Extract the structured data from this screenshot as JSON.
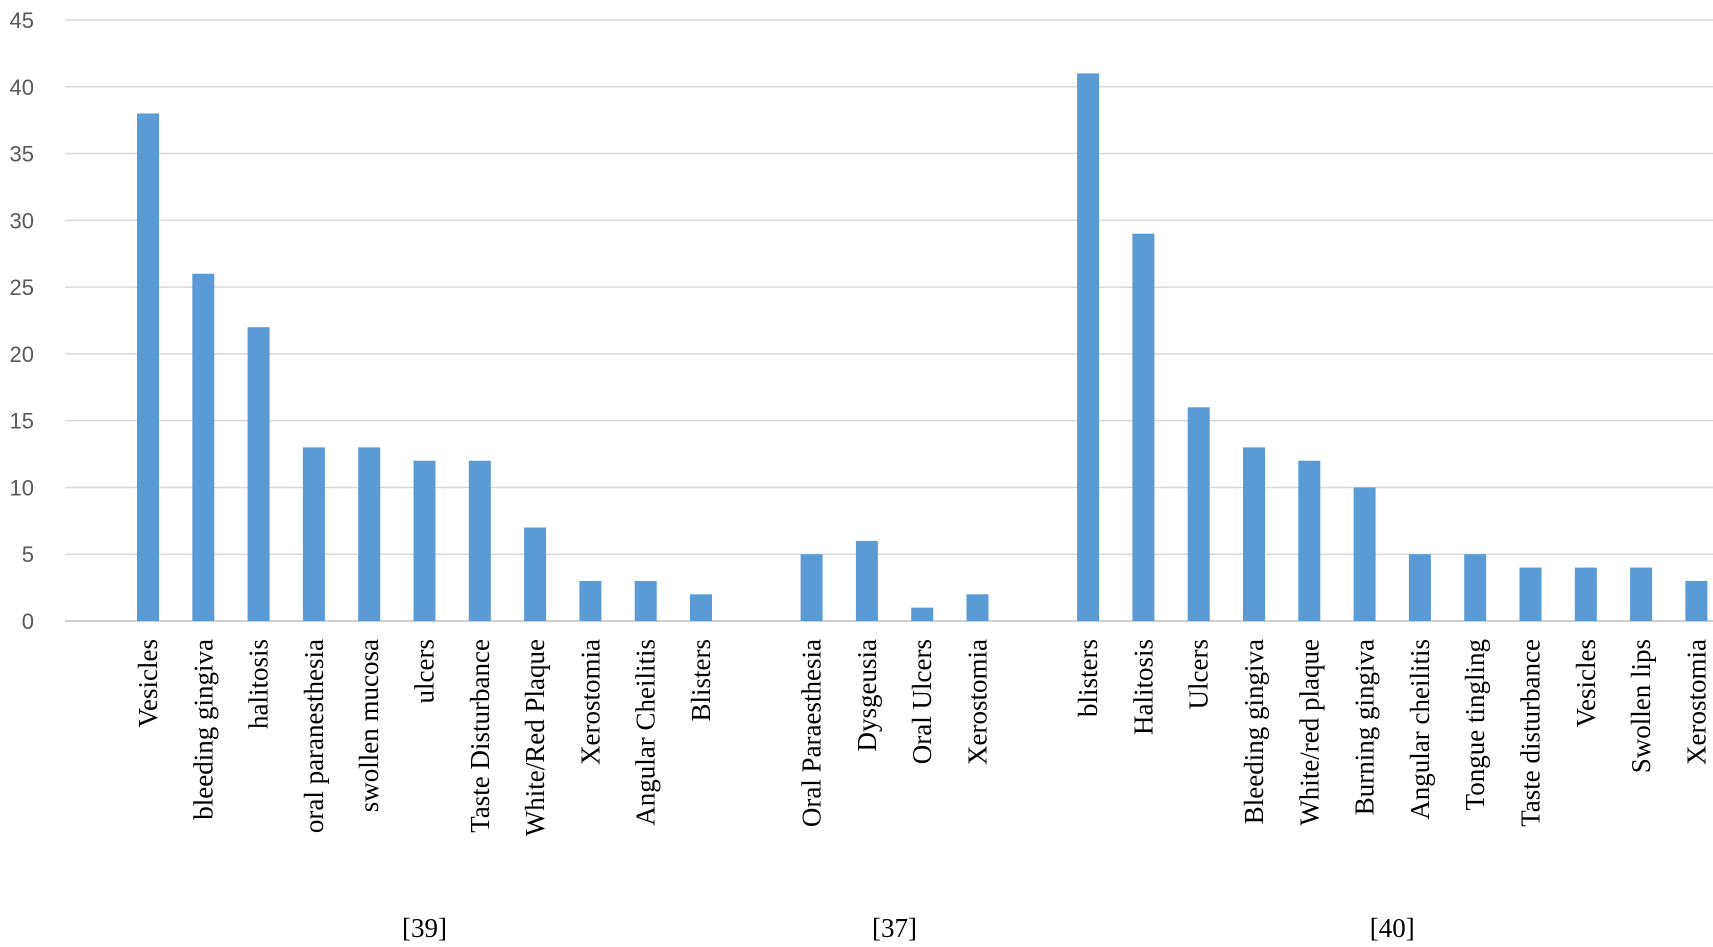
{
  "chart_data": {
    "type": "bar",
    "title": "",
    "xlabel": "",
    "ylabel": "",
    "ylim": [
      0,
      45
    ],
    "y_ticks": [
      "0",
      "5",
      "10",
      "15",
      "20",
      "25",
      "30",
      "35",
      "40",
      "45"
    ],
    "grid": true,
    "bar_color": "#5b9bd5",
    "groups": [
      {
        "label": "[39]",
        "categories": [
          "Vesicles",
          "bleeding gingiva",
          "halitosis",
          "oral paranesthesia",
          "swollen mucosa",
          "ulcers",
          "Taste Disturbance",
          "White/Red Plaque",
          "Xerostomia",
          "Angular Cheilitis",
          "Blisters"
        ],
        "values": [
          38,
          26,
          22,
          13,
          13,
          12,
          12,
          7,
          3,
          3,
          2
        ]
      },
      {
        "label": "[37]",
        "categories": [
          "Oral Paraesthesia",
          "Dysgeusia",
          "Oral Ulcers",
          "Xerostomia"
        ],
        "values": [
          5,
          6,
          1,
          2
        ]
      },
      {
        "label": "[40]",
        "categories": [
          "blisters",
          "Halitosis",
          "Ulcers",
          "Bleeding gingiva",
          "White/red plaque",
          "Burning gingiva",
          "Angular cheilitis",
          "Tongue tingling",
          "Taste disturbance",
          "Vesicles",
          "Swollen lips",
          "Xerostomia"
        ],
        "values": [
          41,
          29,
          16,
          13,
          12,
          10,
          5,
          5,
          4,
          4,
          4,
          3
        ]
      }
    ]
  }
}
